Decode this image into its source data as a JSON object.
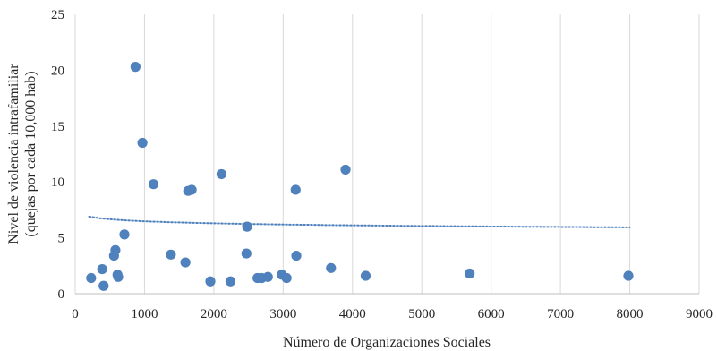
{
  "chart_data": {
    "type": "scatter",
    "xlabel": "Número de Organizaciones Sociales",
    "ylabel_line1": "Nivel de violencia  intrafamiliar",
    "ylabel_line2": "(quejas por cada 10,000 hab)",
    "xlim": [
      0,
      9000
    ],
    "ylim": [
      0,
      25
    ],
    "x_ticks": [
      0,
      1000,
      2000,
      3000,
      4000,
      5000,
      6000,
      7000,
      8000,
      9000
    ],
    "y_ticks": [
      0,
      5,
      10,
      15,
      20,
      25
    ],
    "grid": "vertical",
    "legend": "none",
    "point_color": "#4f81bd",
    "trendline_color": "#4f81bd",
    "trendline": {
      "type": "logarithmic",
      "style": "dotted",
      "a": 6.48,
      "b": -0.26,
      "x_start": 200,
      "x_end": 8000
    },
    "points": [
      [
        230,
        1.4
      ],
      [
        390,
        2.2
      ],
      [
        410,
        0.7
      ],
      [
        560,
        3.4
      ],
      [
        580,
        3.9
      ],
      [
        610,
        1.7
      ],
      [
        620,
        1.5
      ],
      [
        710,
        5.3
      ],
      [
        870,
        20.3
      ],
      [
        970,
        13.5
      ],
      [
        1130,
        9.8
      ],
      [
        1380,
        3.5
      ],
      [
        1590,
        2.8
      ],
      [
        1630,
        9.2
      ],
      [
        1680,
        9.3
      ],
      [
        1950,
        1.1
      ],
      [
        2110,
        10.7
      ],
      [
        2240,
        1.1
      ],
      [
        2470,
        3.6
      ],
      [
        2480,
        6.0
      ],
      [
        2630,
        1.4
      ],
      [
        2690,
        1.4
      ],
      [
        2780,
        1.5
      ],
      [
        2980,
        1.7
      ],
      [
        3050,
        1.4
      ],
      [
        3180,
        9.3
      ],
      [
        3190,
        3.4
      ],
      [
        3690,
        2.3
      ],
      [
        3900,
        11.1
      ],
      [
        4190,
        1.6
      ],
      [
        5690,
        1.8
      ],
      [
        7980,
        1.6
      ]
    ]
  }
}
